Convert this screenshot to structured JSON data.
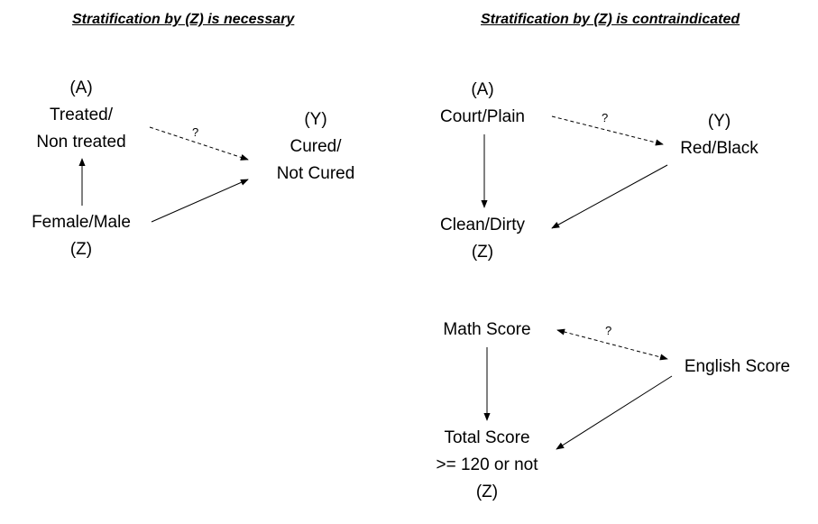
{
  "left": {
    "heading": "Stratification by (Z) is necessary",
    "a_tag": "(A)",
    "a_line1": "Treated/",
    "a_line2": "Non treated",
    "y_tag": "(Y)",
    "y_line1": "Cured/",
    "y_line2": "Not Cured",
    "z_text": "Female/Male",
    "z_tag": "(Z)",
    "unknown": "?"
  },
  "right_top": {
    "heading": "Stratification by (Z) is contraindicated",
    "a_tag": "(A)",
    "a_text": "Court/Plain",
    "y_tag": "(Y)",
    "y_text": "Red/Black",
    "z_text": "Clean/Dirty",
    "z_tag": "(Z)",
    "unknown": "?"
  },
  "right_bottom": {
    "math": "Math Score",
    "english": "English Score",
    "total_line1": "Total Score",
    "total_line2": ">= 120 or not",
    "z_tag": "(Z)",
    "unknown": "?"
  }
}
